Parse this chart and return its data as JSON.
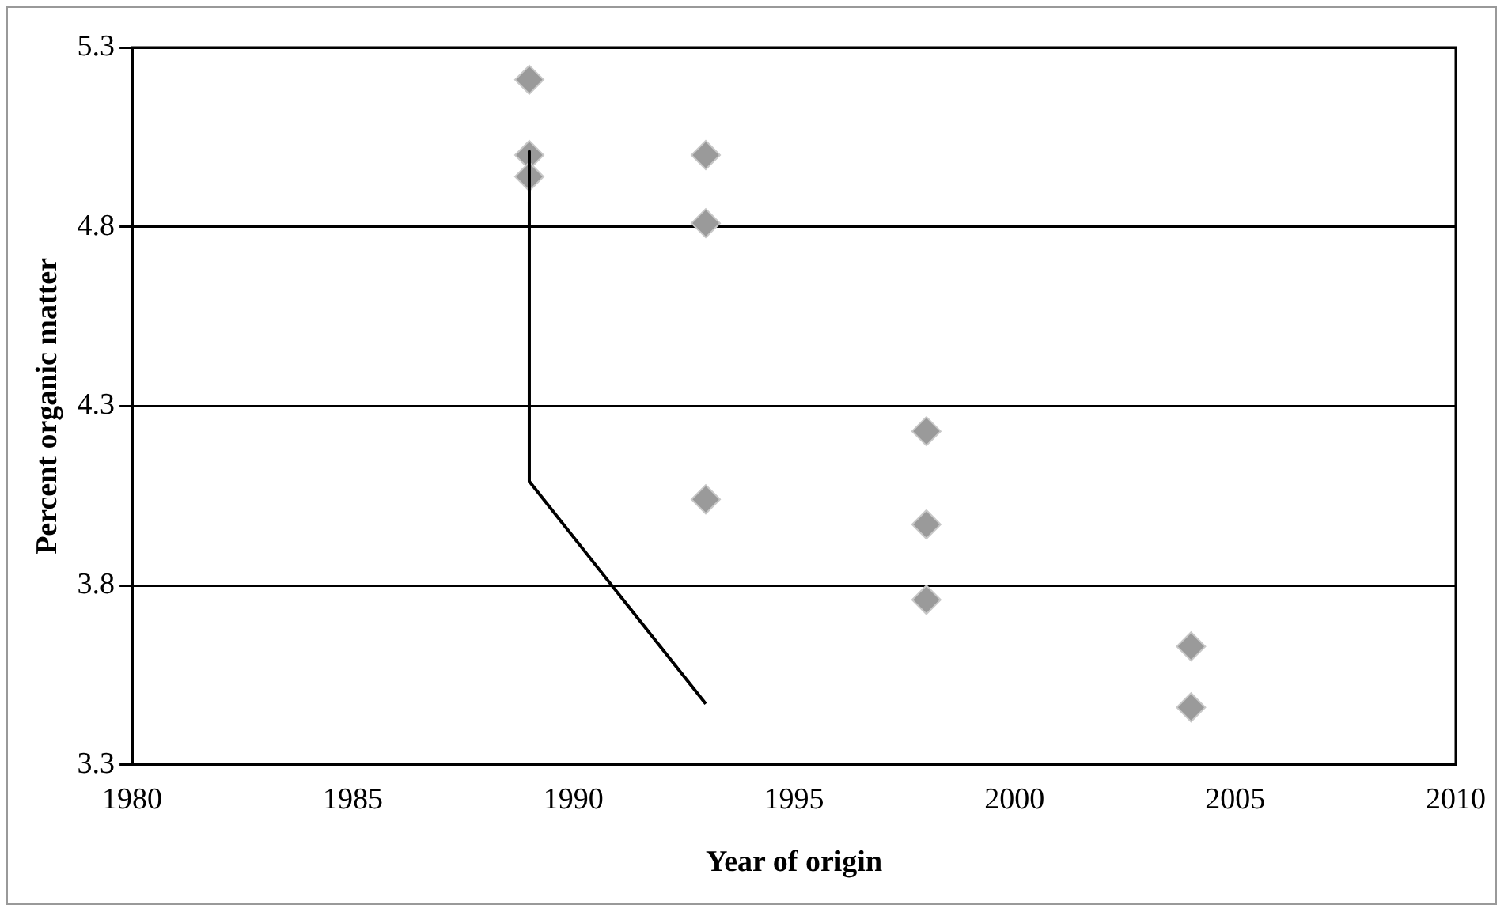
{
  "chart_data": {
    "type": "scatter",
    "xlabel": "Year of origin",
    "ylabel": "Percent organic matter",
    "xlim": [
      1980,
      2010
    ],
    "xticks": [
      1980,
      1985,
      1990,
      1995,
      2000,
      2005,
      2010
    ],
    "ylim": [
      3.3,
      5.3
    ],
    "yticks": [
      3.3,
      3.8,
      4.3,
      4.8,
      5.3
    ],
    "grid": "y",
    "legend": false,
    "series": [
      {
        "type": "scatter",
        "color": "#9a9a9a",
        "marker": "diamond",
        "x": [
          1989,
          1989,
          1989,
          1993,
          1993,
          1993,
          1998,
          1998,
          1998,
          2004,
          2004
        ],
        "values": [
          5.21,
          5.0,
          4.94,
          5.0,
          4.81,
          4.04,
          4.23,
          3.97,
          3.76,
          3.63,
          3.46
        ]
      },
      {
        "type": "line",
        "color": "#000000",
        "marker": "none",
        "line_style": "solid",
        "x": [
          1989,
          1989,
          1993
        ],
        "values": [
          5.01,
          4.09,
          3.47
        ]
      }
    ]
  }
}
